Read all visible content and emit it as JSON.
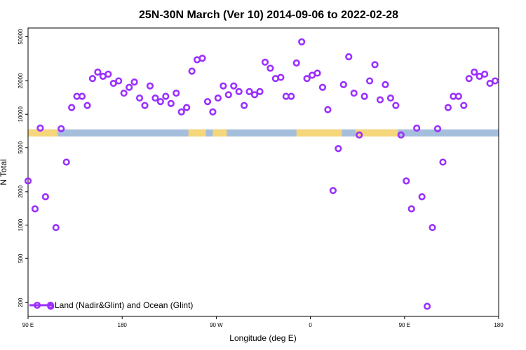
{
  "chart_data": {
    "type": "scatter",
    "title": "25N-30N March (Ver 10)   2014-09-06 to 2022-02-28",
    "xlabel": "Longitude (deg E)",
    "ylabel": "N Total",
    "y_scale": "log",
    "ylim": [
      150,
      60000
    ],
    "xlim": [
      -90,
      180
    ],
    "x_ticks": [
      {
        "value": -90,
        "label": "90 E"
      },
      {
        "value": -36,
        "label": "180"
      },
      {
        "value": 18,
        "label": "90 W"
      },
      {
        "value": 72,
        "label": "0"
      },
      {
        "value": 126,
        "label": "90 E"
      },
      {
        "value": 180,
        "label": "180"
      }
    ],
    "y_ticks": [
      {
        "value": 200,
        "label": "200"
      },
      {
        "value": 500,
        "label": "500"
      },
      {
        "value": 1000,
        "label": "1000"
      },
      {
        "value": 2000,
        "label": "2000"
      },
      {
        "value": 5000,
        "label": "5000"
      },
      {
        "value": 10000,
        "label": "10000"
      },
      {
        "value": 20000,
        "label": "20000"
      },
      {
        "value": 50000,
        "label": "50000"
      }
    ],
    "series": [
      {
        "name": "Land (Nadir&Glint) and Ocean (Glint)",
        "color": "#9b30ff",
        "points": [
          {
            "x": -90,
            "y": 2500
          },
          {
            "x": -86,
            "y": 1400
          },
          {
            "x": -83,
            "y": 7500
          },
          {
            "x": -80,
            "y": 1800
          },
          {
            "x": -77,
            "y": 185
          },
          {
            "x": -74,
            "y": 950
          },
          {
            "x": -71,
            "y": 7400
          },
          {
            "x": -68,
            "y": 3700
          },
          {
            "x": -65,
            "y": 11500
          },
          {
            "x": -62,
            "y": 14500
          },
          {
            "x": -59,
            "y": 14500
          },
          {
            "x": -56,
            "y": 12000
          },
          {
            "x": -53,
            "y": 21000
          },
          {
            "x": -50,
            "y": 24000
          },
          {
            "x": -47,
            "y": 22000
          },
          {
            "x": -44,
            "y": 23000
          },
          {
            "x": -41,
            "y": 19000
          },
          {
            "x": -38,
            "y": 20000
          },
          {
            "x": -35,
            "y": 15500
          },
          {
            "x": -32,
            "y": 17500
          },
          {
            "x": -29,
            "y": 19500
          },
          {
            "x": -26,
            "y": 14000
          },
          {
            "x": -23,
            "y": 12000
          },
          {
            "x": -20,
            "y": 18000
          },
          {
            "x": -17,
            "y": 14000
          },
          {
            "x": -14,
            "y": 13000
          },
          {
            "x": -11,
            "y": 14500
          },
          {
            "x": -8,
            "y": 12500
          },
          {
            "x": -5,
            "y": 15500
          },
          {
            "x": -2,
            "y": 10500
          },
          {
            "x": 1,
            "y": 11500
          },
          {
            "x": 4,
            "y": 24500
          },
          {
            "x": 7,
            "y": 31000
          },
          {
            "x": 10,
            "y": 32000
          },
          {
            "x": 13,
            "y": 13000
          },
          {
            "x": 16,
            "y": 10500
          },
          {
            "x": 19,
            "y": 14000
          },
          {
            "x": 22,
            "y": 18000
          },
          {
            "x": 25,
            "y": 15000
          },
          {
            "x": 28,
            "y": 18000
          },
          {
            "x": 31,
            "y": 16000
          },
          {
            "x": 34,
            "y": 12000
          },
          {
            "x": 37,
            "y": 16000
          },
          {
            "x": 40,
            "y": 15000
          },
          {
            "x": 43,
            "y": 16000
          },
          {
            "x": 46,
            "y": 29500
          },
          {
            "x": 49,
            "y": 26000
          },
          {
            "x": 52,
            "y": 21000
          },
          {
            "x": 55,
            "y": 21500
          },
          {
            "x": 58,
            "y": 14500
          },
          {
            "x": 61,
            "y": 14500
          },
          {
            "x": 64,
            "y": 29000
          },
          {
            "x": 67,
            "y": 45000
          },
          {
            "x": 70,
            "y": 21000
          },
          {
            "x": 73,
            "y": 22500
          },
          {
            "x": 76,
            "y": 23500
          },
          {
            "x": 79,
            "y": 17500
          },
          {
            "x": 82,
            "y": 11000
          },
          {
            "x": 85,
            "y": 2050
          },
          {
            "x": 88,
            "y": 4900
          },
          {
            "x": 91,
            "y": 18500
          },
          {
            "x": 94,
            "y": 33000
          },
          {
            "x": 97,
            "y": 15500
          },
          {
            "x": 100,
            "y": 6500
          },
          {
            "x": 103,
            "y": 14500
          },
          {
            "x": 106,
            "y": 20000
          },
          {
            "x": 109,
            "y": 28000
          },
          {
            "x": 112,
            "y": 13500
          },
          {
            "x": 115,
            "y": 18500
          },
          {
            "x": 118,
            "y": 14000
          },
          {
            "x": 121,
            "y": 12000
          },
          {
            "x": 124,
            "y": 6500
          },
          {
            "x": 127,
            "y": 2500
          },
          {
            "x": 130,
            "y": 1400
          },
          {
            "x": 133,
            "y": 7500
          },
          {
            "x": 136,
            "y": 1800
          },
          {
            "x": 139,
            "y": 185
          },
          {
            "x": 142,
            "y": 950
          },
          {
            "x": 145,
            "y": 7400
          },
          {
            "x": 148,
            "y": 3700
          },
          {
            "x": 151,
            "y": 11500
          },
          {
            "x": 154,
            "y": 14500
          },
          {
            "x": 157,
            "y": 14500
          },
          {
            "x": 160,
            "y": 12000
          },
          {
            "x": 163,
            "y": 21000
          },
          {
            "x": 166,
            "y": 24000
          },
          {
            "x": 169,
            "y": 22000
          },
          {
            "x": 172,
            "y": 23000
          },
          {
            "x": 175,
            "y": 19000
          },
          {
            "x": 178,
            "y": 20000
          }
        ]
      }
    ],
    "band": {
      "y_low": 6300,
      "y_high": 7300,
      "ocean_color": "#a5bedb",
      "land_color": "#f6d67a",
      "land_segments": [
        [
          -90,
          -73
        ],
        [
          2,
          12
        ],
        [
          16,
          24
        ],
        [
          64,
          90
        ],
        [
          98,
          122
        ]
      ]
    },
    "legend": {
      "position": "bottom-left"
    }
  }
}
